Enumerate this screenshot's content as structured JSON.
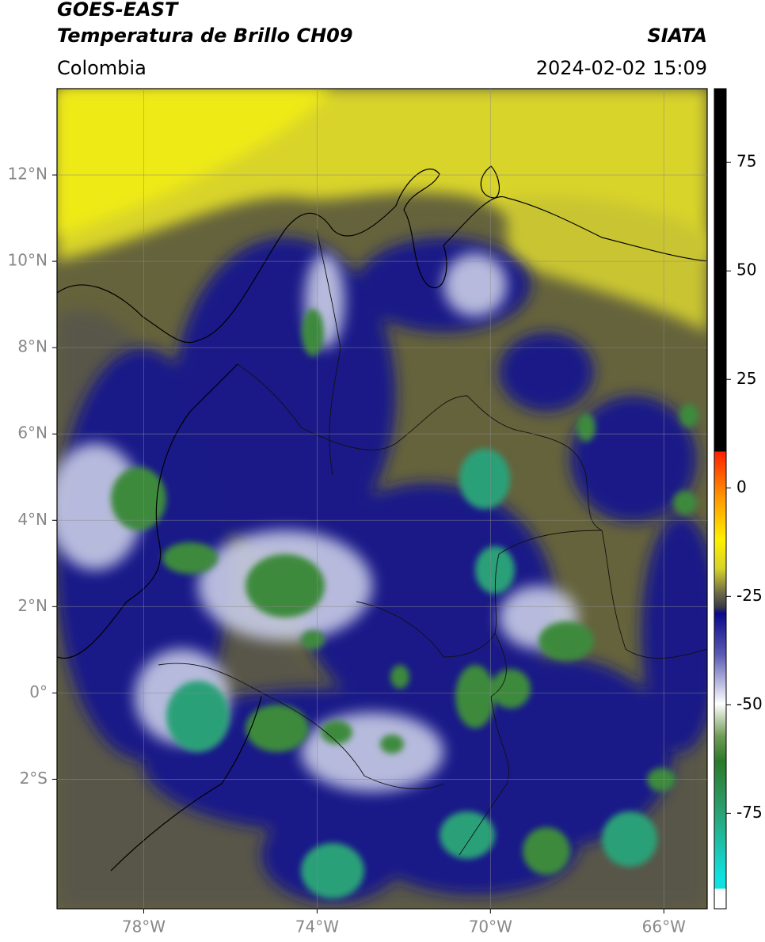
{
  "header": {
    "title": "GOES-EAST",
    "subtitle": "Temperatura de Brillo CH09",
    "source": "SIATA",
    "region": "Colombia",
    "datetime": "2024-02-02 15:09"
  },
  "map": {
    "xlim": [
      -80,
      -65
    ],
    "ylim": [
      -5,
      14
    ],
    "xticks": [
      {
        "value": -78,
        "label": "78°W"
      },
      {
        "value": -74,
        "label": "74°W"
      },
      {
        "value": -70,
        "label": "70°W"
      },
      {
        "value": -66,
        "label": "66°W"
      }
    ],
    "yticks": [
      {
        "value": 12,
        "label": "12°N"
      },
      {
        "value": 10,
        "label": "10°N"
      },
      {
        "value": 8,
        "label": "8°N"
      },
      {
        "value": 6,
        "label": "6°N"
      },
      {
        "value": 4,
        "label": "4°N"
      },
      {
        "value": 2,
        "label": "2°N"
      },
      {
        "value": 0,
        "label": "0°"
      },
      {
        "value": -2,
        "label": "2°S"
      }
    ],
    "grid": true
  },
  "colorbar": {
    "lim": [
      -97,
      92
    ],
    "ticks": [
      75,
      50,
      25,
      0,
      -25,
      -50,
      -75
    ]
  }
}
